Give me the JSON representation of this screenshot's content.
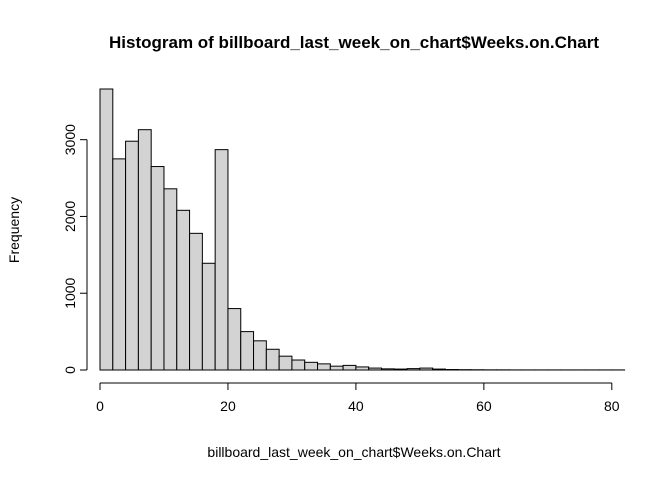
{
  "chart_data": {
    "type": "bar",
    "title": "Histogram of billboard_last_week_on_chart$Weeks.on.Chart",
    "xlabel": "billboard_last_week_on_chart$Weeks.on.Chart",
    "ylabel": "Frequency",
    "bin_width": 2,
    "bin_start": 0,
    "values": [
      3660,
      2750,
      2980,
      3130,
      2650,
      2360,
      2080,
      1780,
      1390,
      2870,
      800,
      500,
      380,
      270,
      180,
      130,
      100,
      80,
      50,
      60,
      40,
      25,
      15,
      12,
      18,
      25,
      12,
      6,
      4,
      3,
      2,
      2,
      1,
      1,
      1,
      1,
      1,
      1,
      1,
      1,
      1
    ],
    "xlim": [
      0,
      83
    ],
    "ylim": [
      0,
      3660
    ],
    "x_ticks": [
      0,
      20,
      40,
      60,
      80
    ],
    "y_ticks": [
      0,
      1000,
      2000,
      3000
    ],
    "x_tick_labels": [
      "0",
      "20",
      "40",
      "60",
      "80"
    ],
    "y_tick_labels": [
      "0",
      "1000",
      "2000",
      "3000"
    ]
  }
}
